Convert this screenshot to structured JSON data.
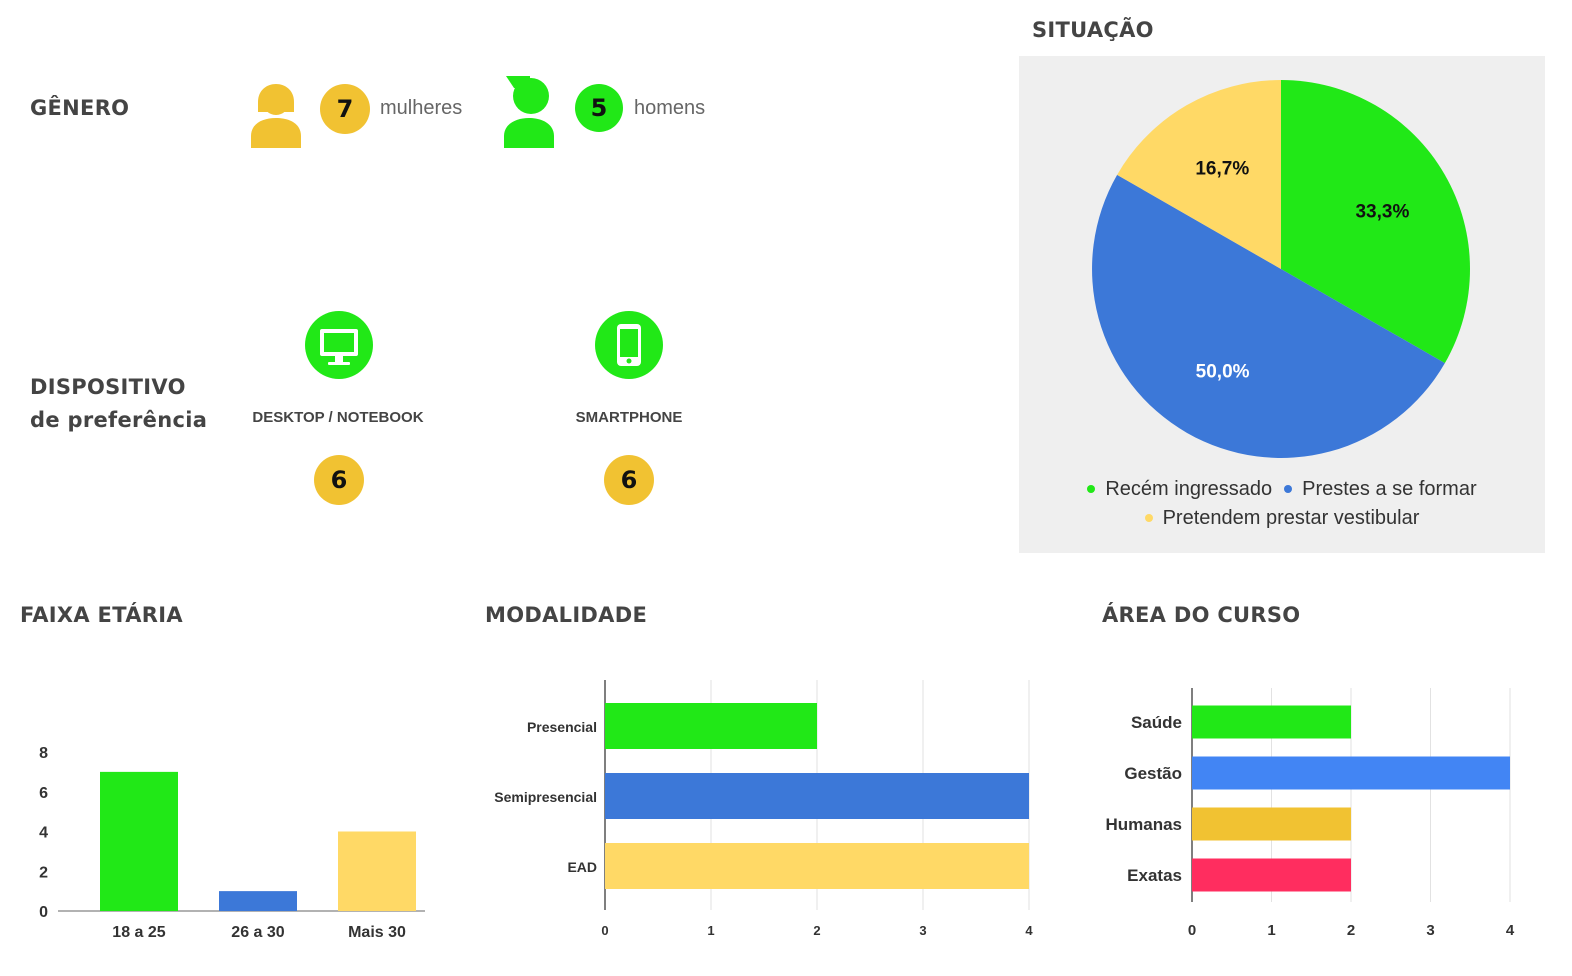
{
  "colors": {
    "green": "#21e817",
    "blue": "#3c78d8",
    "yellow": "#ffd966",
    "gold": "#f1c232",
    "bright_blue": "#4285f4",
    "pink": "#ff2d5f"
  },
  "genero": {
    "title": "GÊNERO",
    "mulheres": {
      "count": "7",
      "label": "mulheres",
      "icon": "woman-icon"
    },
    "homens": {
      "count": "5",
      "label": "homens",
      "icon": "man-icon"
    }
  },
  "dispositivo": {
    "title_line1": "DISPOSITIVO",
    "title_line2": "de preferência",
    "desktop": {
      "label": "DESKTOP / NOTEBOOK",
      "count": "6",
      "icon": "monitor-icon"
    },
    "smartphone": {
      "label": "SMARTPHONE",
      "count": "6",
      "icon": "smartphone-icon"
    }
  },
  "chart_data": [
    {
      "type": "pie",
      "title": "SITUAÇÃO",
      "slices": [
        {
          "label": "Recém ingressado",
          "value": 33.3,
          "display": "33,3%",
          "color": "#21e817"
        },
        {
          "label": "Prestes a se formar",
          "value": 50.0,
          "display": "50,0%",
          "color": "#3c78d8"
        },
        {
          "label": "Pretendem prestar vestibular",
          "value": 16.7,
          "display": "16,7%",
          "color": "#ffd966"
        }
      ],
      "legend_placement": "bottom"
    },
    {
      "type": "bar",
      "title": "FAIXA ETÁRIA",
      "categories": [
        "18 a 25",
        "26 a 30",
        "Mais 30"
      ],
      "values": [
        7,
        1,
        4
      ],
      "colors": [
        "#21e817",
        "#3c78d8",
        "#ffd966"
      ],
      "ylim": [
        0,
        8
      ],
      "yticks": [
        0,
        2,
        4,
        6,
        8
      ],
      "grid": false
    },
    {
      "type": "bar",
      "orientation": "horizontal",
      "title": "MODALIDADE",
      "categories": [
        "Presencial",
        "Semipresencial",
        "EAD"
      ],
      "values": [
        2,
        4,
        4
      ],
      "colors": [
        "#21e817",
        "#3c78d8",
        "#ffd966"
      ],
      "xlim": [
        0,
        4
      ],
      "xticks": [
        0,
        1,
        2,
        3,
        4
      ],
      "grid": true
    },
    {
      "type": "bar",
      "orientation": "horizontal",
      "title": "ÁREA DO CURSO",
      "categories": [
        "Saúde",
        "Gestão",
        "Humanas",
        "Exatas"
      ],
      "values": [
        2,
        4,
        2,
        2
      ],
      "colors": [
        "#21e817",
        "#4285f4",
        "#f1c232",
        "#ff2d5f"
      ],
      "xlim": [
        0,
        4
      ],
      "xticks": [
        0,
        1,
        2,
        3,
        4
      ],
      "grid": true
    }
  ]
}
